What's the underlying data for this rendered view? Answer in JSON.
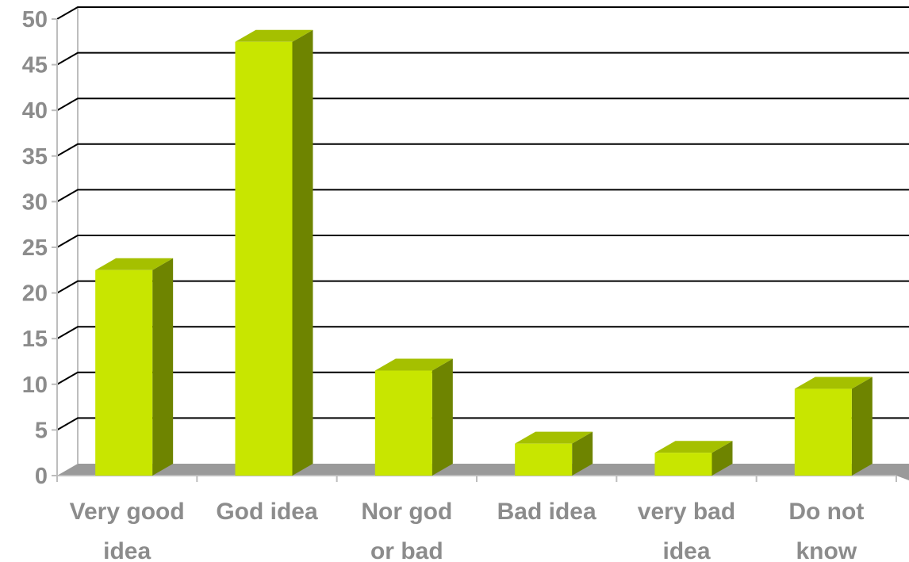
{
  "chart_data": {
    "type": "bar",
    "title": "",
    "xlabel": "",
    "ylabel": "",
    "categories": [
      [
        "Very good",
        "idea"
      ],
      [
        "God idea"
      ],
      [
        "Nor god",
        "or bad"
      ],
      [
        "Bad idea"
      ],
      [
        "very bad",
        "idea"
      ],
      [
        "Do not",
        "know"
      ]
    ],
    "values": [
      22.5,
      47.5,
      11.5,
      3.5,
      2.5,
      9.5
    ],
    "ylim": [
      0,
      50
    ],
    "yticks": [
      0,
      5,
      10,
      15,
      20,
      25,
      30,
      35,
      40,
      45,
      50
    ],
    "grid": true,
    "legend": "none",
    "three_d": true,
    "colors": {
      "bar_front": "#c8e600",
      "bar_top": "#a5c000",
      "bar_side": "#6e8400",
      "floor": "#9a9a9a",
      "gridline": "#000000",
      "wall_edge": "#bdbdbd",
      "label": "#8c8c8c"
    }
  }
}
